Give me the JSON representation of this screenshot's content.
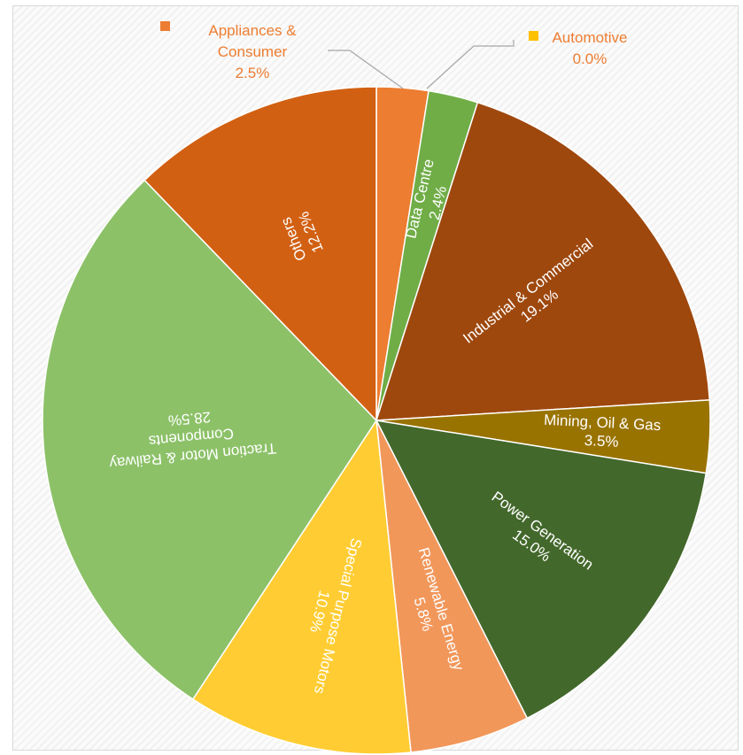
{
  "chart_data": {
    "type": "pie",
    "title": "",
    "slices": [
      {
        "label": "Appliances &\nConsumer",
        "value": 2.5,
        "display": "2.5%",
        "color": "#ED7D31",
        "label_mode": "outside",
        "legend": true
      },
      {
        "label": "Automotive",
        "value": 0.0,
        "display": "0.0%",
        "color": "#FFC000",
        "label_mode": "outside",
        "legend": true
      },
      {
        "label": "Data Centre",
        "value": 2.4,
        "display": "2.4%",
        "color": "#70AD47",
        "label_mode": "inside"
      },
      {
        "label": "Industrial & Commercial",
        "value": 19.1,
        "display": "19.1%",
        "color": "#9E480E",
        "label_mode": "inside"
      },
      {
        "label": "Mining, Oil & Gas",
        "value": 3.5,
        "display": "3.5%",
        "color": "#997300",
        "label_mode": "inside",
        "text_color": "#ffffff"
      },
      {
        "label": "Power Generation",
        "value": 15.0,
        "display": "15.0%",
        "color": "#43682B",
        "label_mode": "inside"
      },
      {
        "label": "Renewable Energy",
        "value": 5.8,
        "display": "5.8%",
        "color": "#F1975A",
        "label_mode": "inside"
      },
      {
        "label": "Special Purpose Motors",
        "value": 10.9,
        "display": "10.9%",
        "color": "#FFCD33",
        "label_mode": "inside"
      },
      {
        "label": "Traction Motor & Railway\nComponents",
        "value": 28.5,
        "display": "28.5%",
        "color": "#8CC168",
        "label_mode": "inside"
      },
      {
        "label": "Others",
        "value": 12.2,
        "display": "12.2%",
        "color": "#D26012",
        "label_mode": "inside"
      }
    ]
  }
}
